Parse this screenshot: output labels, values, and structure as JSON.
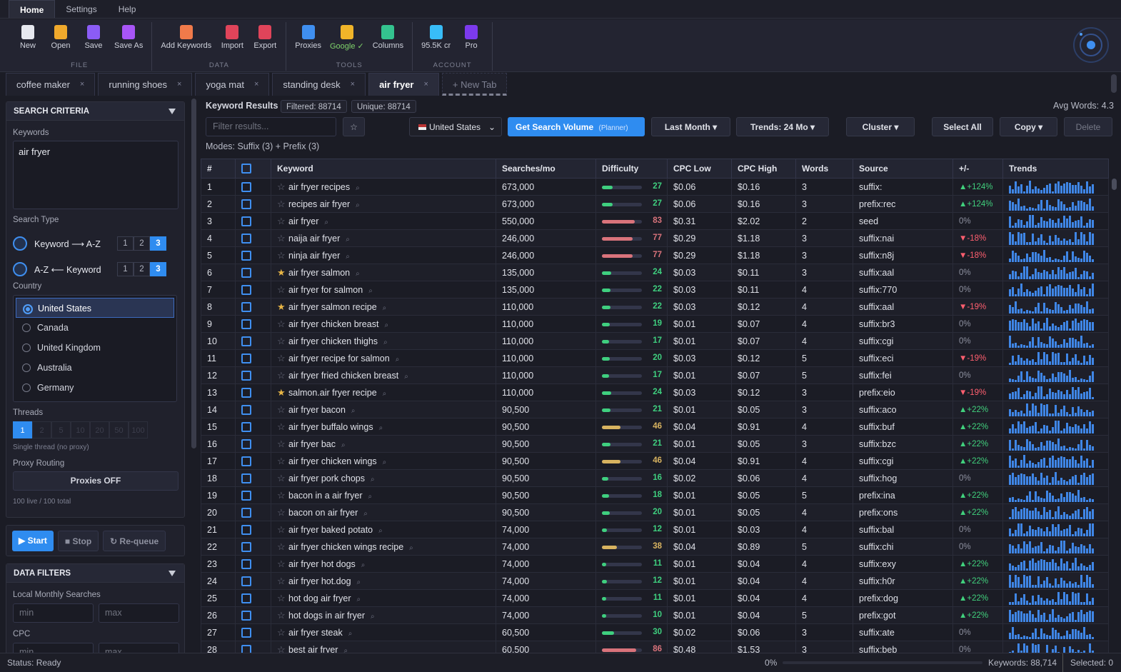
{
  "menu": {
    "items": [
      "Home",
      "Settings",
      "Help"
    ],
    "active": "Home"
  },
  "ribbon": {
    "groups": [
      {
        "label": "FILE",
        "buttons": [
          "New",
          "Open",
          "Save",
          "Save As"
        ]
      },
      {
        "label": "DATA",
        "buttons": [
          "Add Keywords",
          "Import",
          "Export"
        ]
      },
      {
        "label": "TOOLS",
        "buttons": [
          "Proxies",
          "Google ✓",
          "Columns"
        ]
      },
      {
        "label": "ACCOUNT",
        "buttons": [
          "95.5K cr",
          "Pro"
        ]
      }
    ]
  },
  "tabs": {
    "items": [
      {
        "label": "coffee maker",
        "active": false
      },
      {
        "label": "running shoes",
        "active": false
      },
      {
        "label": "yoga mat",
        "active": false
      },
      {
        "label": "standing desk",
        "active": false
      },
      {
        "label": "air fryer",
        "active": true
      }
    ],
    "close": "×",
    "new_tab": "+ New Tab"
  },
  "sidebar": {
    "search_criteria": {
      "title": "SEARCH CRITERIA",
      "keywords_label": "Keywords",
      "keywords": "air fryer",
      "search_type_label": "Search Type",
      "search_types": [
        {
          "label": "Keyword ⟶ A-Z",
          "levels": [
            1,
            2,
            3
          ],
          "active": 3
        },
        {
          "label": "A-Z ⟵ Keyword",
          "levels": [
            1,
            2,
            3
          ],
          "active": 3
        }
      ],
      "country_label": "Country",
      "countries": {
        "items": [
          "United States",
          "Canada",
          "United Kingdom",
          "Australia",
          "Germany"
        ],
        "selected": "United States"
      },
      "threads": {
        "label": "Threads",
        "options": [
          1,
          2,
          5,
          10,
          20,
          50,
          100
        ],
        "active": 1,
        "note": "Single thread (no proxy)"
      },
      "proxy": {
        "label": "Proxy Routing",
        "button": "Proxies OFF",
        "stats": "100 live / 100 total"
      }
    },
    "controls": [
      "▶ Start",
      "■ Stop",
      "↻ Re-queue"
    ],
    "data_filters": {
      "title": "DATA FILTERS",
      "fields": [
        {
          "label": "Local Monthly Searches",
          "placeholders": [
            "min",
            "max"
          ]
        },
        {
          "label": "CPC",
          "placeholders": [
            "min",
            "max"
          ]
        }
      ]
    }
  },
  "results": {
    "title": "Keyword Results",
    "filtered": "Filtered: 88714",
    "unique": "Unique: 88714",
    "avg_words": "Avg Words: 4.3",
    "filter_placeholder": "Filter results...",
    "country": "United States",
    "search_volume": {
      "label": "Get Search Volume",
      "note": "(Planner)"
    },
    "buttons": [
      "Last Month ▾",
      "Trends: 24 Mo ▾",
      "Cluster ▾",
      "Select All",
      "Copy ▾",
      "Delete"
    ],
    "modes": "Modes: Suffix (3) + Prefix (3)"
  },
  "table": {
    "columns": [
      "#",
      "Keyword",
      "Searches/mo",
      "Difficulty",
      "CPC Low",
      "CPC High",
      "Words",
      "Source",
      "+/-",
      "Trends"
    ],
    "starred": [
      6,
      8,
      13
    ],
    "rows": [
      [
        1,
        "air fryer recipes",
        "673,000",
        27,
        "$0.06",
        "$0.16",
        3,
        "suffix:",
        "▲+124%"
      ],
      [
        2,
        "recipes air fryer",
        "673,000",
        27,
        "$0.06",
        "$0.16",
        3,
        "prefix:rec",
        "▲+124%"
      ],
      [
        3,
        "air fryer",
        "550,000",
        83,
        "$0.31",
        "$2.02",
        2,
        "seed",
        "0%"
      ],
      [
        4,
        "naija air fryer",
        "246,000",
        77,
        "$0.29",
        "$1.18",
        3,
        "suffix:nai",
        "▼-18%"
      ],
      [
        5,
        "ninja air fryer",
        "246,000",
        77,
        "$0.29",
        "$1.18",
        3,
        "suffix:n8j",
        "▼-18%"
      ],
      [
        6,
        "air fryer salmon",
        "135,000",
        24,
        "$0.03",
        "$0.11",
        3,
        "suffix:aal",
        "0%"
      ],
      [
        7,
        "air fryer for salmon",
        "135,000",
        22,
        "$0.03",
        "$0.11",
        4,
        "suffix:770",
        "0%"
      ],
      [
        8,
        "air fryer salmon recipe",
        "110,000",
        22,
        "$0.03",
        "$0.12",
        4,
        "suffix:aal",
        "▼-19%"
      ],
      [
        9,
        "air fryer chicken breast",
        "110,000",
        19,
        "$0.01",
        "$0.07",
        4,
        "suffix:br3",
        "0%"
      ],
      [
        10,
        "air fryer chicken thighs",
        "110,000",
        17,
        "$0.01",
        "$0.07",
        4,
        "suffix:cgi",
        "0%"
      ],
      [
        11,
        "air fryer recipe for salmon",
        "110,000",
        20,
        "$0.03",
        "$0.12",
        5,
        "suffix:eci",
        "▼-19%"
      ],
      [
        12,
        "air fryer fried chicken breast",
        "110,000",
        17,
        "$0.01",
        "$0.07",
        5,
        "suffix:fei",
        "0%"
      ],
      [
        13,
        "salmon.air fryer recipe",
        "110,000",
        24,
        "$0.03",
        "$0.12",
        3,
        "prefix:eio",
        "▼-19%"
      ],
      [
        14,
        "air fryer bacon",
        "90,500",
        21,
        "$0.01",
        "$0.05",
        3,
        "suffix:aco",
        "▲+22%"
      ],
      [
        15,
        "air fryer buffalo wings",
        "90,500",
        46,
        "$0.04",
        "$0.91",
        4,
        "suffix:buf",
        "▲+22%"
      ],
      [
        16,
        "air fryer bac",
        "90,500",
        21,
        "$0.01",
        "$0.05",
        3,
        "suffix:bzc",
        "▲+22%"
      ],
      [
        17,
        "air fryer chicken wings",
        "90,500",
        46,
        "$0.04",
        "$0.91",
        4,
        "suffix:cgi",
        "▲+22%"
      ],
      [
        18,
        "air fryer pork chops",
        "90,500",
        16,
        "$0.02",
        "$0.06",
        4,
        "suffix:hog",
        "0%"
      ],
      [
        19,
        "bacon in a air fryer",
        "90,500",
        18,
        "$0.01",
        "$0.05",
        5,
        "prefix:ina",
        "▲+22%"
      ],
      [
        20,
        "bacon on air fryer",
        "90,500",
        20,
        "$0.01",
        "$0.05",
        4,
        "prefix:ons",
        "▲+22%"
      ],
      [
        21,
        "air fryer baked potato",
        "74,000",
        12,
        "$0.01",
        "$0.03",
        4,
        "suffix:bal",
        "0%"
      ],
      [
        22,
        "air fryer chicken wings recipe",
        "74,000",
        38,
        "$0.04",
        "$0.89",
        5,
        "suffix:chi",
        "0%"
      ],
      [
        23,
        "air fryer hot dogs",
        "74,000",
        11,
        "$0.01",
        "$0.04",
        4,
        "suffix:exy",
        "▲+22%"
      ],
      [
        24,
        "air fryer hot.dog",
        "74,000",
        12,
        "$0.01",
        "$0.04",
        4,
        "suffix:h0r",
        "▲+22%"
      ],
      [
        25,
        "hot dog air fryer",
        "74,000",
        11,
        "$0.01",
        "$0.04",
        4,
        "prefix:dog",
        "▲+22%"
      ],
      [
        26,
        "hot dogs in air fryer",
        "74,000",
        10,
        "$0.01",
        "$0.04",
        5,
        "prefix:got",
        "▲+22%"
      ],
      [
        27,
        "air fryer steak",
        "60,500",
        30,
        "$0.02",
        "$0.06",
        3,
        "suffix:ate",
        "0%"
      ],
      [
        28,
        "best air fryer",
        "60,500",
        86,
        "$0.48",
        "$1.53",
        3,
        "suffix:beb",
        "0%"
      ]
    ]
  },
  "status": {
    "text": "Status: Ready",
    "progress": "0%",
    "keywords": "Keywords: 88,714",
    "selected": "Selected: 0"
  }
}
